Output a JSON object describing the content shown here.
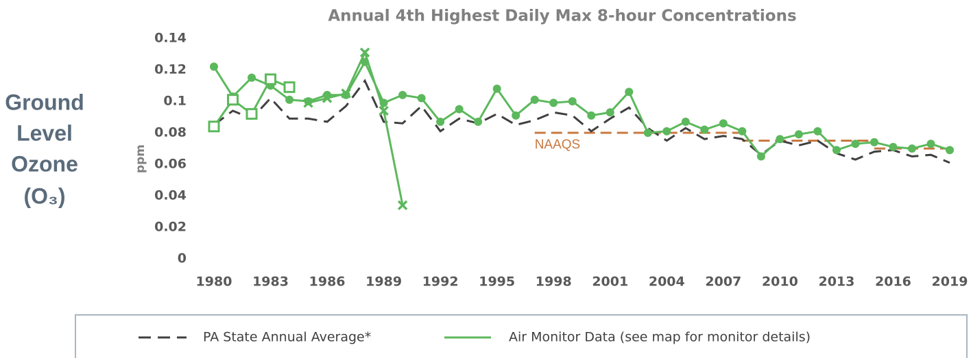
{
  "side_label": {
    "lines": [
      "Ground",
      "Level",
      "Ozone",
      "(O₃)"
    ]
  },
  "chart_data": {
    "type": "line",
    "title": "Annual 4th Highest Daily Max 8-hour Concentrations",
    "ylabel": "ppm",
    "x": [
      1980,
      1981,
      1982,
      1983,
      1984,
      1985,
      1986,
      1987,
      1988,
      1989,
      1990,
      1991,
      1992,
      1993,
      1994,
      1995,
      1996,
      1997,
      1998,
      1999,
      2000,
      2001,
      2002,
      2003,
      2004,
      2005,
      2006,
      2007,
      2008,
      2009,
      2010,
      2011,
      2012,
      2013,
      2014,
      2015,
      2016,
      2017,
      2018,
      2019
    ],
    "xlim": [
      1980,
      2019
    ],
    "xticks": [
      1980,
      1983,
      1986,
      1989,
      1992,
      1995,
      1998,
      2001,
      2004,
      2007,
      2010,
      2013,
      2016,
      2019
    ],
    "ylim": [
      0,
      0.14
    ],
    "yticks": [
      0,
      0.02,
      0.04,
      0.06,
      0.08,
      0.1,
      0.12,
      0.14
    ],
    "series": [
      {
        "name": "PA State Annual Average*",
        "color": "#404040",
        "dashed": true,
        "values": [
          0.085,
          0.094,
          0.089,
          0.102,
          0.089,
          0.089,
          0.087,
          0.097,
          0.113,
          0.087,
          0.086,
          0.097,
          0.081,
          0.089,
          0.086,
          0.092,
          0.085,
          0.088,
          0.093,
          0.091,
          0.081,
          0.089,
          0.096,
          0.083,
          0.075,
          0.083,
          0.076,
          0.078,
          0.076,
          0.066,
          0.075,
          0.072,
          0.075,
          0.067,
          0.063,
          0.068,
          0.069,
          0.065,
          0.066,
          0.061
        ]
      }
    ],
    "monitors": {
      "name": "Air Monitor Data (see map for monitor details)",
      "color": "#5cb85c",
      "data": [
        {
          "marker": "circle",
          "x": [
            1980,
            1981,
            1982,
            1983,
            1984,
            1985,
            1986,
            1987,
            1988,
            1989,
            1990,
            1991,
            1992,
            1993,
            1994,
            1995,
            1996,
            1997,
            1998,
            1999,
            2000,
            2001,
            2002,
            2003,
            2004,
            2005,
            2006,
            2007,
            2008,
            2009,
            2010,
            2011,
            2012,
            2013,
            2014,
            2015,
            2016,
            2017,
            2018,
            2019
          ],
          "values": [
            0.122,
            0.103,
            0.115,
            0.11,
            0.101,
            0.1,
            0.104,
            0.104,
            0.125,
            0.099,
            0.104,
            0.102,
            0.087,
            0.095,
            0.087,
            0.108,
            0.091,
            0.101,
            0.099,
            0.1,
            0.091,
            0.093,
            0.106,
            0.08,
            0.081,
            0.087,
            0.082,
            0.086,
            0.081,
            0.065,
            0.076,
            0.079,
            0.081,
            0.069,
            0.073,
            0.074,
            0.071,
            0.07,
            0.073,
            0.069
          ]
        },
        {
          "marker": "square",
          "x": [
            1980,
            1981,
            1982,
            1983,
            1984
          ],
          "values": [
            0.084,
            0.101,
            0.092,
            0.114,
            0.109
          ]
        },
        {
          "marker": "x",
          "x": [
            1985,
            1986,
            1987,
            1988,
            1989,
            1990
          ],
          "values": [
            0.099,
            0.102,
            0.105,
            0.131,
            0.094,
            0.034
          ]
        }
      ]
    },
    "naaqs": {
      "label": "NAAQS",
      "color": "#c87941",
      "segments": [
        {
          "x": [
            1997,
            2008
          ],
          "value": 0.08
        },
        {
          "x": [
            2008,
            2015
          ],
          "value": 0.075
        },
        {
          "x": [
            2015,
            2019
          ],
          "value": 0.07
        }
      ]
    }
  }
}
